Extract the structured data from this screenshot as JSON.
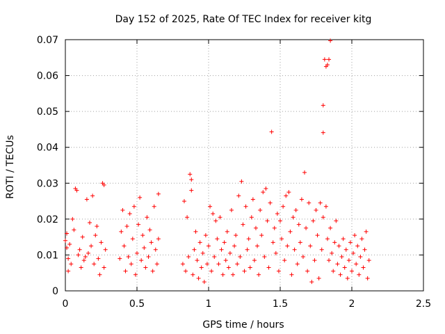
{
  "chart_data": {
    "type": "scatter",
    "title": "Day 152 of 2025, Rate Of TEC Index for receiver kitg",
    "xlabel": "GPS time / hours",
    "ylabel": "ROTI / TECUs",
    "xlim": [
      0,
      2.5
    ],
    "ylim": [
      0,
      0.07
    ],
    "x_ticks": [
      0,
      0.5,
      1,
      1.5,
      2,
      2.5
    ],
    "x_tick_labels": [
      "0",
      "0.5",
      "1",
      "1.5",
      "2",
      "2.5"
    ],
    "y_ticks": [
      0,
      0.01,
      0.02,
      0.03,
      0.04,
      0.05,
      0.06,
      0.07
    ],
    "y_tick_labels": [
      "0",
      "0.01",
      "0.02",
      "0.03",
      "0.04",
      "0.05",
      "0.06",
      "0.07"
    ],
    "grid": true,
    "marker": "+",
    "series": [
      {
        "name": "ROTI",
        "color": "#ff0000",
        "points": [
          [
            0.0,
            0.014
          ],
          [
            0.01,
            0.012
          ],
          [
            0.01,
            0.016
          ],
          [
            0.02,
            0.009
          ],
          [
            0.02,
            0.0055
          ],
          [
            0.03,
            0.013
          ],
          [
            0.04,
            0.0075
          ],
          [
            0.05,
            0.02
          ],
          [
            0.06,
            0.017
          ],
          [
            0.07,
            0.0285
          ],
          [
            0.08,
            0.028
          ],
          [
            0.09,
            0.01
          ],
          [
            0.1,
            0.0115
          ],
          [
            0.11,
            0.0065
          ],
          [
            0.12,
            0.015
          ],
          [
            0.13,
            0.0085
          ],
          [
            0.14,
            0.0095
          ],
          [
            0.15,
            0.0255
          ],
          [
            0.16,
            0.0105
          ],
          [
            0.17,
            0.019
          ],
          [
            0.18,
            0.0125
          ],
          [
            0.19,
            0.0265
          ],
          [
            0.2,
            0.0075
          ],
          [
            0.21,
            0.0155
          ],
          [
            0.22,
            0.018
          ],
          [
            0.23,
            0.009
          ],
          [
            0.24,
            0.0045
          ],
          [
            0.25,
            0.0135
          ],
          [
            0.26,
            0.03
          ],
          [
            0.27,
            0.0295
          ],
          [
            0.27,
            0.0065
          ],
          [
            0.28,
            0.0115
          ],
          [
            0.38,
            0.009
          ],
          [
            0.39,
            0.0165
          ],
          [
            0.4,
            0.0225
          ],
          [
            0.41,
            0.0125
          ],
          [
            0.42,
            0.0055
          ],
          [
            0.43,
            0.018
          ],
          [
            0.44,
            0.0095
          ],
          [
            0.45,
            0.0215
          ],
          [
            0.46,
            0.0075
          ],
          [
            0.47,
            0.0145
          ],
          [
            0.48,
            0.0235
          ],
          [
            0.49,
            0.0045
          ],
          [
            0.5,
            0.0105
          ],
          [
            0.51,
            0.0185
          ],
          [
            0.52,
            0.026
          ],
          [
            0.53,
            0.0085
          ],
          [
            0.54,
            0.0155
          ],
          [
            0.55,
            0.012
          ],
          [
            0.56,
            0.0065
          ],
          [
            0.57,
            0.0205
          ],
          [
            0.58,
            0.0095
          ],
          [
            0.59,
            0.017
          ],
          [
            0.6,
            0.0135
          ],
          [
            0.61,
            0.0055
          ],
          [
            0.62,
            0.0235
          ],
          [
            0.63,
            0.0115
          ],
          [
            0.64,
            0.0075
          ],
          [
            0.65,
            0.027
          ],
          [
            0.65,
            0.0145
          ],
          [
            0.82,
            0.0075
          ],
          [
            0.83,
            0.025
          ],
          [
            0.84,
            0.0055
          ],
          [
            0.85,
            0.0205
          ],
          [
            0.86,
            0.0095
          ],
          [
            0.87,
            0.0325
          ],
          [
            0.88,
            0.031
          ],
          [
            0.88,
            0.028
          ],
          [
            0.89,
            0.0045
          ],
          [
            0.9,
            0.0115
          ],
          [
            0.91,
            0.0165
          ],
          [
            0.92,
            0.0085
          ],
          [
            0.93,
            0.0035
          ],
          [
            0.94,
            0.0135
          ],
          [
            0.95,
            0.0065
          ],
          [
            0.96,
            0.0105
          ],
          [
            0.97,
            0.0025
          ],
          [
            0.98,
            0.0155
          ],
          [
            0.99,
            0.0075
          ],
          [
            1.0,
            0.0125
          ],
          [
            1.01,
            0.0235
          ],
          [
            1.02,
            0.0055
          ],
          [
            1.03,
            0.0215
          ],
          [
            1.04,
            0.0095
          ],
          [
            1.05,
            0.0195
          ],
          [
            1.06,
            0.0145
          ],
          [
            1.07,
            0.0075
          ],
          [
            1.08,
            0.0205
          ],
          [
            1.09,
            0.0115
          ],
          [
            1.1,
            0.0045
          ],
          [
            1.11,
            0.0135
          ],
          [
            1.12,
            0.0085
          ],
          [
            1.13,
            0.0165
          ],
          [
            1.14,
            0.0065
          ],
          [
            1.15,
            0.0105
          ],
          [
            1.16,
            0.0225
          ],
          [
            1.17,
            0.0045
          ],
          [
            1.18,
            0.0125
          ],
          [
            1.19,
            0.0155
          ],
          [
            1.2,
            0.0075
          ],
          [
            1.21,
            0.0265
          ],
          [
            1.22,
            0.0095
          ],
          [
            1.23,
            0.0305
          ],
          [
            1.24,
            0.0185
          ],
          [
            1.25,
            0.0055
          ],
          [
            1.26,
            0.0235
          ],
          [
            1.27,
            0.0115
          ],
          [
            1.28,
            0.0145
          ],
          [
            1.29,
            0.0065
          ],
          [
            1.3,
            0.0205
          ],
          [
            1.31,
            0.0255
          ],
          [
            1.32,
            0.0085
          ],
          [
            1.33,
            0.0175
          ],
          [
            1.34,
            0.0125
          ],
          [
            1.35,
            0.0045
          ],
          [
            1.36,
            0.0225
          ],
          [
            1.37,
            0.0155
          ],
          [
            1.38,
            0.0275
          ],
          [
            1.39,
            0.0095
          ],
          [
            1.4,
            0.0285
          ],
          [
            1.41,
            0.0195
          ],
          [
            1.42,
            0.0065
          ],
          [
            1.43,
            0.0245
          ],
          [
            1.44,
            0.0443
          ],
          [
            1.45,
            0.0135
          ],
          [
            1.46,
            0.0175
          ],
          [
            1.47,
            0.0105
          ],
          [
            1.48,
            0.0215
          ],
          [
            1.49,
            0.0055
          ],
          [
            1.5,
            0.0195
          ],
          [
            1.51,
            0.0145
          ],
          [
            1.52,
            0.0235
          ],
          [
            1.53,
            0.0085
          ],
          [
            1.54,
            0.0265
          ],
          [
            1.55,
            0.0125
          ],
          [
            1.56,
            0.0275
          ],
          [
            1.57,
            0.0165
          ],
          [
            1.58,
            0.0045
          ],
          [
            1.59,
            0.0205
          ],
          [
            1.6,
            0.0115
          ],
          [
            1.61,
            0.0225
          ],
          [
            1.62,
            0.0075
          ],
          [
            1.63,
            0.0185
          ],
          [
            1.64,
            0.0135
          ],
          [
            1.65,
            0.0255
          ],
          [
            1.66,
            0.0095
          ],
          [
            1.67,
            0.033
          ],
          [
            1.68,
            0.0175
          ],
          [
            1.69,
            0.0055
          ],
          [
            1.7,
            0.0245
          ],
          [
            1.71,
            0.0125
          ],
          [
            1.72,
            0.0025
          ],
          [
            1.73,
            0.0195
          ],
          [
            1.74,
            0.0085
          ],
          [
            1.75,
            0.0225
          ],
          [
            1.76,
            0.0155
          ],
          [
            1.77,
            0.0035
          ],
          [
            1.78,
            0.0245
          ],
          [
            1.79,
            0.0115
          ],
          [
            1.8,
            0.0205
          ],
          [
            1.8,
            0.0441
          ],
          [
            1.8,
            0.0517
          ],
          [
            1.81,
            0.0645
          ],
          [
            1.82,
            0.0625
          ],
          [
            1.83,
            0.063
          ],
          [
            1.84,
            0.0645
          ],
          [
            1.85,
            0.0697
          ],
          [
            1.82,
            0.0235
          ],
          [
            1.83,
            0.0145
          ],
          [
            1.84,
            0.0085
          ],
          [
            1.85,
            0.0175
          ],
          [
            1.86,
            0.0105
          ],
          [
            1.87,
            0.0055
          ],
          [
            1.88,
            0.0135
          ],
          [
            1.89,
            0.0195
          ],
          [
            1.9,
            0.0075
          ],
          [
            1.91,
            0.0125
          ],
          [
            1.92,
            0.0045
          ],
          [
            1.93,
            0.0095
          ],
          [
            1.94,
            0.0145
          ],
          [
            1.95,
            0.0065
          ],
          [
            1.96,
            0.0115
          ],
          [
            1.97,
            0.0035
          ],
          [
            1.98,
            0.0085
          ],
          [
            1.99,
            0.0135
          ],
          [
            2.0,
            0.0055
          ],
          [
            2.01,
            0.0105
          ],
          [
            2.02,
            0.0155
          ],
          [
            2.03,
            0.0075
          ],
          [
            2.04,
            0.0125
          ],
          [
            2.05,
            0.0045
          ],
          [
            2.06,
            0.0095
          ],
          [
            2.07,
            0.0145
          ],
          [
            2.08,
            0.0065
          ],
          [
            2.09,
            0.0115
          ],
          [
            2.1,
            0.0165
          ],
          [
            2.11,
            0.0035
          ],
          [
            2.12,
            0.0085
          ]
        ]
      }
    ]
  }
}
